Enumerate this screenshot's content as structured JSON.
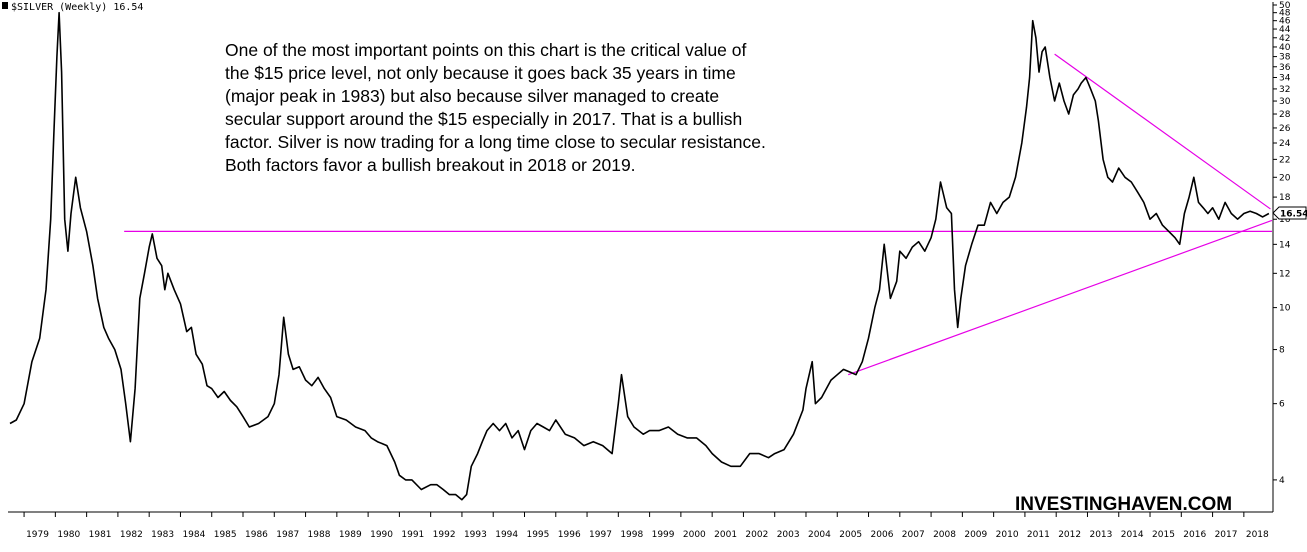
{
  "chart_data": {
    "type": "line",
    "title": "$SILVER (Weekly) 16.54",
    "symbol_icon": "bar-chart-icon",
    "last_value_label": "16.54",
    "scale": "log",
    "ylim": [
      3.5,
      50
    ],
    "y_ticks": [
      4,
      6,
      8,
      10,
      12,
      14,
      16,
      18,
      20,
      22,
      24,
      26,
      28,
      30,
      32,
      34,
      36,
      38,
      40,
      42,
      44,
      46,
      48,
      50
    ],
    "x_ticks": [
      "1979",
      "1980",
      "1981",
      "1982",
      "1983",
      "1984",
      "1985",
      "1986",
      "1987",
      "1988",
      "1989",
      "1990",
      "1991",
      "1992",
      "1993",
      "1994",
      "1995",
      "1996",
      "1997",
      "1998",
      "1999",
      "2000",
      "2001",
      "2002",
      "2003",
      "2004",
      "2005",
      "2006",
      "2007",
      "2008",
      "2009",
      "2010",
      "2011",
      "2012",
      "2013",
      "2014",
      "2015",
      "2016",
      "2017",
      "2018"
    ],
    "xlim": [
      1978.55,
      2018.9
    ],
    "annotation_lines": [
      "One of the most important points on this chart is the critical value of",
      "the $15 price level, not only because it goes back 35 years in time",
      "(major peak in 1983) but also because silver managed to create",
      "secular support around the $15 especially in 2017. That is a bullish",
      "factor. Silver is now trading for a long time close to secular resistance.",
      "Both factors favor a bullish breakout in 2018 or 2019."
    ],
    "watermark": "INVESTINGHAVEN.COM",
    "trendline_color": "#e600e6",
    "price_color": "#000000",
    "trendlines": [
      {
        "from": [
          1982.2,
          15.0
        ],
        "to": [
          2018.9,
          15.0
        ]
      },
      {
        "from": [
          2005.35,
          7.0
        ],
        "to": [
          2018.9,
          15.9
        ]
      },
      {
        "from": [
          2011.95,
          38.5
        ],
        "to": [
          2018.85,
          16.9
        ]
      }
    ],
    "x": [
      1978.55,
      1978.75,
      1979.0,
      1979.25,
      1979.5,
      1979.7,
      1979.85,
      1979.95,
      1980.05,
      1980.12,
      1980.2,
      1980.3,
      1980.4,
      1980.5,
      1980.65,
      1980.8,
      1981.0,
      1981.2,
      1981.35,
      1981.55,
      1981.7,
      1981.9,
      1982.1,
      1982.25,
      1982.4,
      1982.55,
      1982.7,
      1982.85,
      1983.0,
      1983.1,
      1983.25,
      1983.4,
      1983.5,
      1983.6,
      1983.8,
      1984.0,
      1984.2,
      1984.35,
      1984.5,
      1984.7,
      1984.85,
      1985.0,
      1985.2,
      1985.4,
      1985.6,
      1985.8,
      1986.0,
      1986.2,
      1986.5,
      1986.8,
      1987.0,
      1987.15,
      1987.3,
      1987.45,
      1987.6,
      1987.8,
      1988.0,
      1988.2,
      1988.4,
      1988.6,
      1988.8,
      1989.0,
      1989.3,
      1989.6,
      1989.9,
      1990.1,
      1990.3,
      1990.6,
      1990.85,
      1991.0,
      1991.2,
      1991.4,
      1991.7,
      1992.0,
      1992.2,
      1992.4,
      1992.6,
      1992.8,
      1993.0,
      1993.15,
      1993.3,
      1993.5,
      1993.65,
      1993.8,
      1994.0,
      1994.2,
      1994.4,
      1994.6,
      1994.8,
      1995.0,
      1995.2,
      1995.4,
      1995.6,
      1995.8,
      1996.0,
      1996.3,
      1996.6,
      1996.9,
      1997.2,
      1997.5,
      1997.8,
      1998.0,
      1998.1,
      1998.3,
      1998.5,
      1998.8,
      1999.0,
      1999.3,
      1999.6,
      1999.9,
      2000.2,
      2000.5,
      2000.8,
      2001.0,
      2001.3,
      2001.6,
      2001.9,
      2002.2,
      2002.5,
      2002.8,
      2003.0,
      2003.3,
      2003.6,
      2003.9,
      2004.0,
      2004.2,
      2004.3,
      2004.5,
      2004.8,
      2005.0,
      2005.2,
      2005.4,
      2005.6,
      2005.8,
      2006.0,
      2006.2,
      2006.35,
      2006.5,
      2006.7,
      2006.9,
      2007.0,
      2007.2,
      2007.4,
      2007.6,
      2007.8,
      2008.0,
      2008.15,
      2008.3,
      2008.5,
      2008.65,
      2008.75,
      2008.85,
      2008.95,
      2009.1,
      2009.3,
      2009.5,
      2009.7,
      2009.9,
      2010.1,
      2010.3,
      2010.5,
      2010.7,
      2010.9,
      2011.05,
      2011.15,
      2011.25,
      2011.35,
      2011.45,
      2011.55,
      2011.65,
      2011.8,
      2011.95,
      2012.1,
      2012.25,
      2012.4,
      2012.55,
      2012.7,
      2012.8,
      2012.95,
      2013.1,
      2013.25,
      2013.35,
      2013.5,
      2013.65,
      2013.8,
      2014.0,
      2014.2,
      2014.4,
      2014.6,
      2014.8,
      2015.0,
      2015.2,
      2015.4,
      2015.6,
      2015.8,
      2015.95,
      2016.1,
      2016.25,
      2016.4,
      2016.55,
      2016.7,
      2016.85,
      2017.0,
      2017.2,
      2017.4,
      2017.6,
      2017.8,
      2018.0,
      2018.2,
      2018.4,
      2018.6,
      2018.8
    ],
    "y": [
      5.4,
      5.5,
      6.0,
      7.5,
      8.5,
      11.0,
      16.0,
      25.0,
      38.0,
      48.0,
      35.0,
      16.0,
      13.5,
      16.5,
      20.0,
      17.0,
      15.0,
      12.5,
      10.5,
      9.0,
      8.5,
      8.0,
      7.2,
      6.0,
      4.9,
      6.5,
      10.5,
      12.0,
      13.8,
      14.8,
      13.0,
      12.5,
      11.0,
      12.0,
      11.0,
      10.2,
      8.8,
      9.0,
      7.8,
      7.4,
      6.6,
      6.5,
      6.2,
      6.4,
      6.1,
      5.9,
      5.6,
      5.3,
      5.4,
      5.6,
      6.0,
      7.0,
      9.5,
      7.8,
      7.2,
      7.3,
      6.8,
      6.6,
      6.9,
      6.5,
      6.2,
      5.6,
      5.5,
      5.3,
      5.2,
      5.0,
      4.9,
      4.8,
      4.4,
      4.1,
      4.0,
      4.0,
      3.8,
      3.9,
      3.9,
      3.8,
      3.7,
      3.7,
      3.6,
      3.7,
      4.3,
      4.6,
      4.9,
      5.2,
      5.4,
      5.2,
      5.4,
      5.0,
      5.2,
      4.7,
      5.2,
      5.4,
      5.3,
      5.2,
      5.5,
      5.1,
      5.0,
      4.8,
      4.9,
      4.8,
      4.6,
      6.0,
      7.0,
      5.6,
      5.3,
      5.1,
      5.2,
      5.2,
      5.3,
      5.1,
      5.0,
      5.0,
      4.8,
      4.6,
      4.4,
      4.3,
      4.3,
      4.6,
      4.6,
      4.5,
      4.6,
      4.7,
      5.1,
      5.8,
      6.5,
      7.5,
      6.0,
      6.2,
      6.8,
      7.0,
      7.2,
      7.1,
      7.0,
      7.5,
      8.5,
      10.0,
      11.0,
      14.0,
      10.5,
      11.5,
      13.5,
      13.0,
      13.8,
      14.2,
      13.5,
      14.5,
      16.0,
      19.5,
      17.0,
      16.5,
      11.0,
      9.0,
      10.5,
      12.5,
      14.0,
      15.5,
      15.5,
      17.5,
      16.5,
      17.5,
      18.0,
      20.0,
      24.0,
      29.0,
      34.0,
      46.0,
      42.0,
      35.0,
      39.0,
      40.0,
      34.0,
      30.0,
      33.0,
      30.0,
      28.0,
      31.0,
      32.0,
      33.0,
      34.0,
      32.0,
      30.0,
      27.0,
      22.0,
      20.0,
      19.5,
      21.0,
      20.0,
      19.5,
      18.5,
      17.5,
      16.0,
      16.5,
      15.5,
      15.0,
      14.5,
      14.0,
      16.5,
      18.0,
      20.0,
      17.5,
      17.0,
      16.5,
      17.0,
      16.0,
      17.5,
      16.5,
      16.0,
      16.5,
      16.7,
      16.5,
      16.2,
      16.5
    ]
  }
}
